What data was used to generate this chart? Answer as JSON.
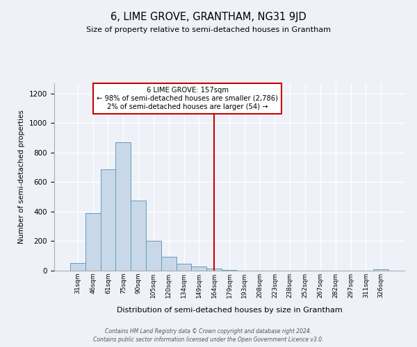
{
  "title": "6, LIME GROVE, GRANTHAM, NG31 9JD",
  "subtitle": "Size of property relative to semi-detached houses in Grantham",
  "xlabel": "Distribution of semi-detached houses by size in Grantham",
  "ylabel": "Number of semi-detached properties",
  "bar_labels": [
    "31sqm",
    "46sqm",
    "61sqm",
    "75sqm",
    "90sqm",
    "105sqm",
    "120sqm",
    "134sqm",
    "149sqm",
    "164sqm",
    "179sqm",
    "193sqm",
    "208sqm",
    "223sqm",
    "238sqm",
    "252sqm",
    "267sqm",
    "282sqm",
    "297sqm",
    "311sqm",
    "326sqm"
  ],
  "bar_values": [
    50,
    390,
    685,
    870,
    475,
    200,
    95,
    48,
    28,
    15,
    5,
    2,
    1,
    0,
    0,
    0,
    0,
    0,
    0,
    0,
    8
  ],
  "bar_color": "#c8d8e8",
  "bar_edge_color": "#6699bb",
  "property_line_x": 9.0,
  "property_label": "6 LIME GROVE: 157sqm",
  "annotation_line1": "← 98% of semi-detached houses are smaller (2,786)",
  "annotation_line2": "2% of semi-detached houses are larger (54) →",
  "annotation_box_color": "#ffffff",
  "annotation_box_edge_color": "#cc0000",
  "vline_color": "#cc0000",
  "ylim": [
    0,
    1270
  ],
  "yticks": [
    0,
    200,
    400,
    600,
    800,
    1000,
    1200
  ],
  "background_color": "#eef2f8",
  "footer1": "Contains HM Land Registry data © Crown copyright and database right 2024.",
  "footer2": "Contains public sector information licensed under the Open Government Licence v3.0."
}
